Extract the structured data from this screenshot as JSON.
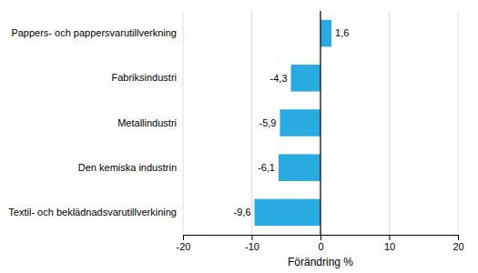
{
  "chart_data": {
    "type": "bar",
    "orientation": "horizontal",
    "categories": [
      "Textil- och beklädnadsvarutillverkining",
      "Den kemiska industrin",
      "Metallindustri",
      "Fabriksindustri",
      "Pappers- och pappersvarutillverkning"
    ],
    "values": [
      -9.6,
      -6.1,
      -5.9,
      -4.3,
      1.6
    ],
    "value_labels": [
      "-9,6",
      "-6,1",
      "-5,9",
      "-4,3",
      "1,6"
    ],
    "data_labels": true,
    "color": "#29ABE2",
    "xlabel": "Förändring %",
    "xlim": [
      -20,
      20
    ],
    "xticks": [
      -20,
      -10,
      0,
      10,
      20
    ],
    "grid": true
  }
}
